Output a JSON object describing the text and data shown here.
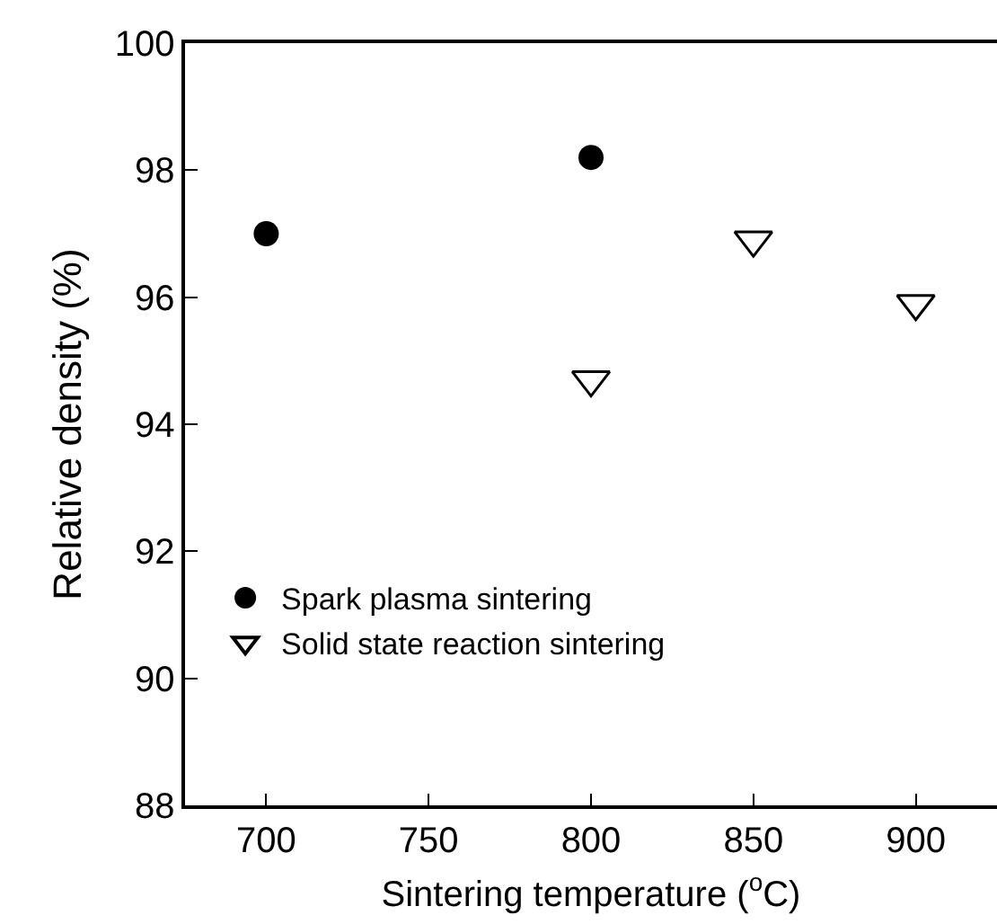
{
  "chart_data": {
    "type": "scatter",
    "xlabel": "Sintering temperature ($^{o}$C)",
    "ylabel": "Relative density (%)",
    "xlim": [
      675,
      925
    ],
    "xticks": [
      700,
      750,
      800,
      850,
      900
    ],
    "ylim": [
      88,
      100
    ],
    "yticks": [
      88,
      90,
      92,
      94,
      96,
      98,
      100
    ],
    "grid": false,
    "legend": "bottom left",
    "series": [
      {
        "name": "Spark plasma sintering",
        "color": "#000000",
        "marker": "circle",
        "x": [
          700,
          800
        ],
        "values": [
          97.0,
          98.2
        ]
      },
      {
        "name": "Solid state reaction sintering",
        "color": "#000000",
        "marker": "triangle",
        "x": [
          800,
          850,
          900
        ],
        "values": [
          94.7,
          96.9,
          95.9
        ]
      }
    ]
  }
}
